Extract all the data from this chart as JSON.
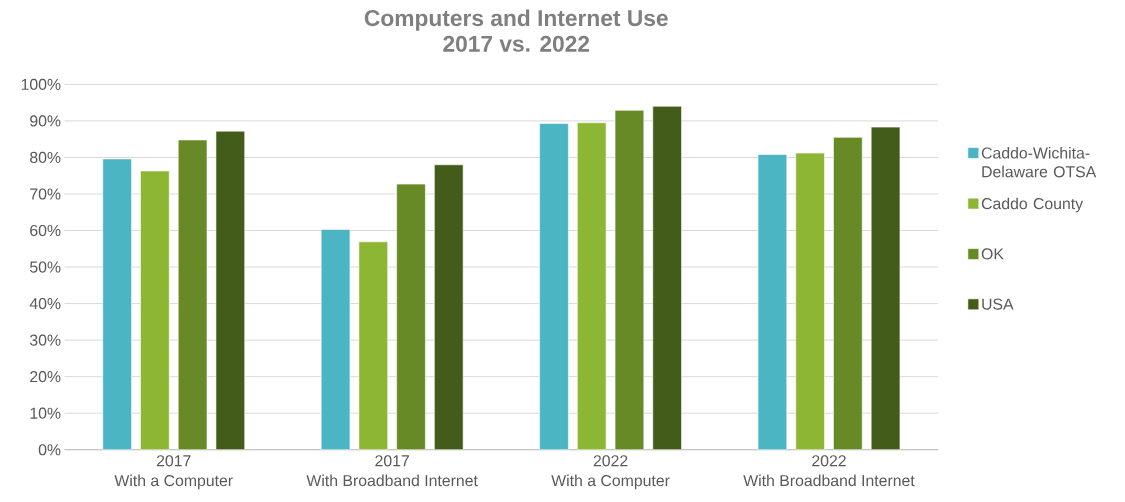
{
  "chart_data": {
    "type": "bar",
    "title": "Computers and Internet Use",
    "subtitle": "2017 vs. 2022",
    "categories": [
      "2017 With a Computer",
      "2017 With Broadband Internet",
      "2022 With a Computer",
      "2022 With Broadband Internet"
    ],
    "series": [
      {
        "name": "Caddo-Wichita-Delaware OTSA",
        "color": "#4bb5c4",
        "values": [
          79.6,
          60.3,
          89.3,
          80.8
        ]
      },
      {
        "name": "Caddo County",
        "color": "#8cb634",
        "values": [
          76.3,
          56.9,
          89.5,
          81.2
        ]
      },
      {
        "name": "OK",
        "color": "#688a26",
        "values": [
          84.8,
          72.7,
          92.9,
          85.5
        ]
      },
      {
        "name": "USA",
        "color": "#445c19",
        "values": [
          87.2,
          78.0,
          94.0,
          88.3
        ]
      }
    ],
    "ylim": [
      0,
      100
    ],
    "yticks": [
      {
        "value": 0,
        "label": "0%"
      },
      {
        "value": 10,
        "label": "10%"
      },
      {
        "value": 20,
        "label": "20%"
      },
      {
        "value": 30,
        "label": "30%"
      },
      {
        "value": 40,
        "label": "40%"
      },
      {
        "value": 50,
        "label": "50%"
      },
      {
        "value": 60,
        "label": "60%"
      },
      {
        "value": 70,
        "label": "70%"
      },
      {
        "value": 80,
        "label": "80%"
      },
      {
        "value": 90,
        "label": "90%"
      },
      {
        "value": 100,
        "label": "100%"
      }
    ],
    "grid": "y",
    "legend": "right"
  }
}
